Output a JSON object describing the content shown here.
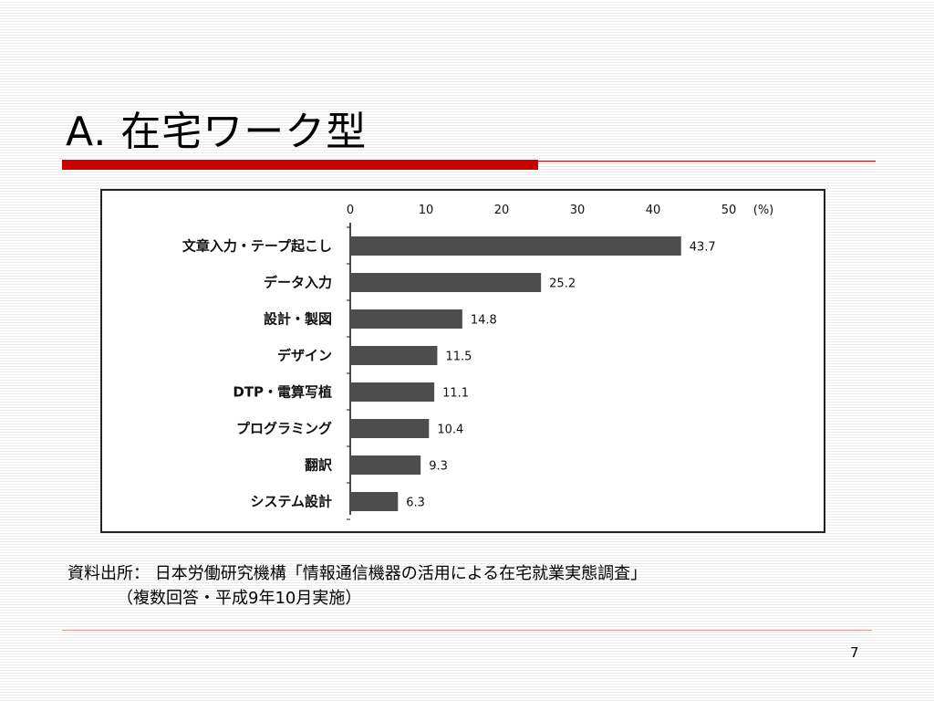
{
  "slide": {
    "title": "A.  在宅ワーク型",
    "source_line1": "資料出所：  日本労働研究機構「情報通信機器の活用による在宅就業実態調査」",
    "source_line2": "（複数回答・平成9年10月実施）",
    "page_number": "7"
  },
  "colors": {
    "accent": "#cc0000",
    "bar": "#4d4d4d"
  },
  "chart_data": {
    "type": "bar",
    "orientation": "horizontal",
    "unit_label": "(%)",
    "xlim": [
      0,
      50
    ],
    "ticks": [
      "0",
      "10",
      "20",
      "30",
      "40",
      "50"
    ],
    "grid": false,
    "categories": [
      "文章入力・テープ起こし",
      "データ入力",
      "設計・製図",
      "デザイン",
      "DTP・電算写植",
      "プログラミング",
      "翻訳",
      "システム設計"
    ],
    "values": [
      43.7,
      25.2,
      14.8,
      11.5,
      11.1,
      10.4,
      9.3,
      6.3
    ],
    "value_labels": [
      "43.7",
      "25.2",
      "14.8",
      "11.5",
      "11.1",
      "10.4",
      "9.3",
      "6.3"
    ]
  }
}
